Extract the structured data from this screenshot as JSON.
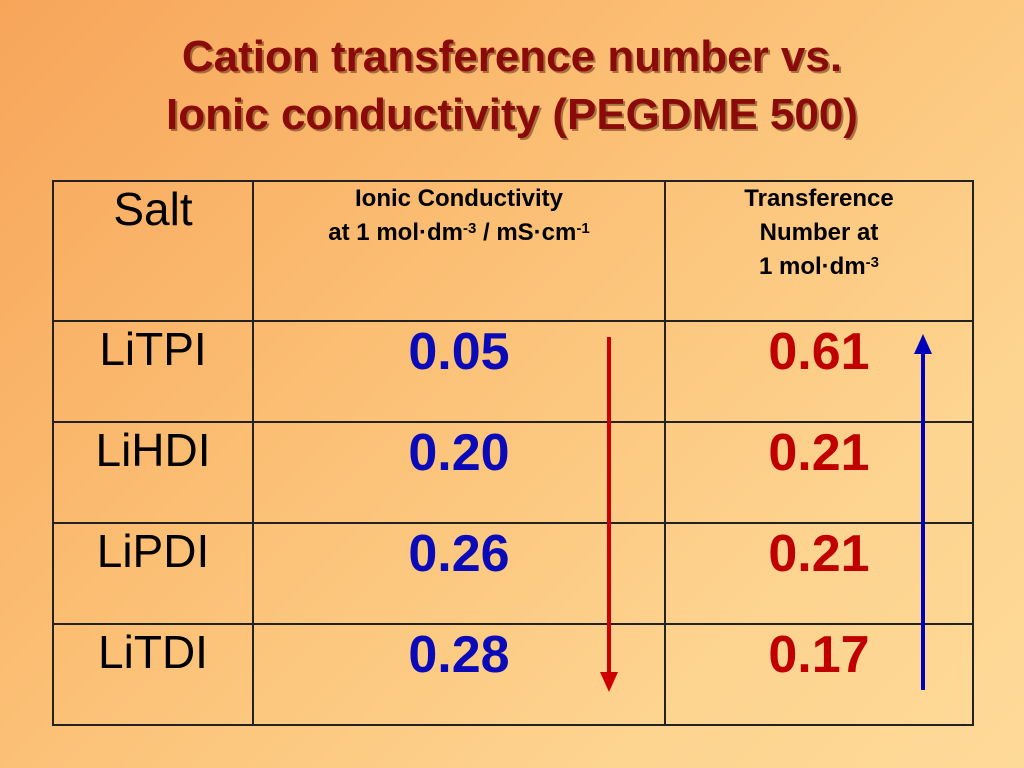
{
  "title": {
    "line1": "Cation transference number vs.",
    "line2": "Ionic conductivity (PEGDME 500)"
  },
  "table": {
    "header": {
      "salt": "Salt",
      "cond_line1": "Ionic Conductivity",
      "cond_line2_a": "at 1 mol·dm",
      "cond_line2_sup1": "-3",
      "cond_line2_b": " / mS·cm",
      "cond_line2_sup2": "-1",
      "trans_line1": "Transference",
      "trans_line2": "Number at",
      "trans_line3": "1 mol·dm",
      "trans_line3_sup": "-3"
    },
    "rows": [
      {
        "salt": "LiTPI",
        "conductivity": "0.05",
        "transference": "0.61"
      },
      {
        "salt": "LiHDI",
        "conductivity": "0.20",
        "transference": "0.21"
      },
      {
        "salt": "LiPDI",
        "conductivity": "0.26",
        "transference": "0.21"
      },
      {
        "salt": "LiTDI",
        "conductivity": "0.28",
        "transference": "0.17"
      }
    ]
  },
  "arrows": {
    "conductivity_arrow": {
      "direction": "down",
      "color": "#cc0000"
    },
    "transference_arrow": {
      "direction": "up",
      "color": "#0000bb"
    }
  },
  "colors": {
    "title": "#8b0a0a",
    "conductivity_values": "#0a0ab8",
    "transference_values": "#c00000"
  }
}
